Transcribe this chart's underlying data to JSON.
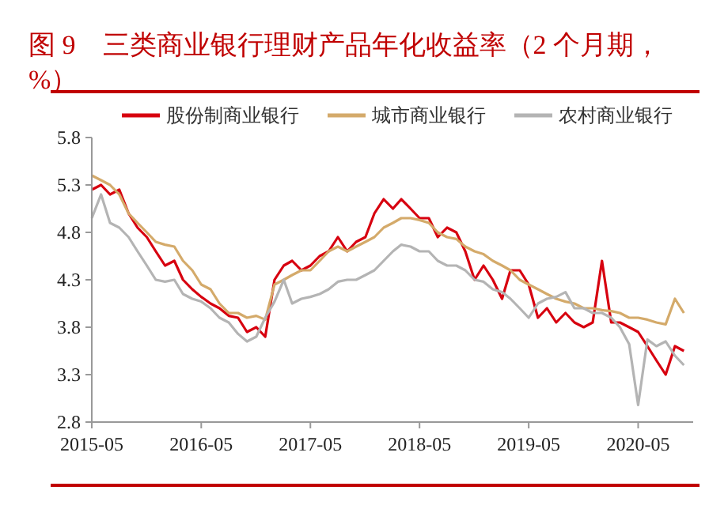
{
  "chart_data": {
    "type": "line",
    "title": "图 9　三类商业银行理财产品年化收益率（2 个月期，%）",
    "x": [
      "2015-05",
      "2015-06",
      "2015-07",
      "2015-08",
      "2015-09",
      "2015-10",
      "2015-11",
      "2015-12",
      "2016-01",
      "2016-02",
      "2016-03",
      "2016-04",
      "2016-05",
      "2016-06",
      "2016-07",
      "2016-08",
      "2016-09",
      "2016-10",
      "2016-11",
      "2016-12",
      "2017-01",
      "2017-02",
      "2017-03",
      "2017-04",
      "2017-05",
      "2017-06",
      "2017-07",
      "2017-08",
      "2017-09",
      "2017-10",
      "2017-11",
      "2017-12",
      "2018-01",
      "2018-02",
      "2018-03",
      "2018-04",
      "2018-05",
      "2018-06",
      "2018-07",
      "2018-08",
      "2018-09",
      "2018-10",
      "2018-11",
      "2018-12",
      "2019-01",
      "2019-02",
      "2019-03",
      "2019-04",
      "2019-05",
      "2019-06",
      "2019-07",
      "2019-08",
      "2019-09",
      "2019-10",
      "2019-11",
      "2019-12",
      "2020-01",
      "2020-02",
      "2020-03",
      "2020-04",
      "2020-05",
      "2020-06",
      "2020-07",
      "2020-08",
      "2020-09",
      "2020-10"
    ],
    "series": [
      {
        "name": "股份制商业银行",
        "color": "#d7000f",
        "values": [
          5.25,
          5.3,
          5.2,
          5.25,
          5.0,
          4.85,
          4.75,
          4.6,
          4.45,
          4.5,
          4.3,
          4.2,
          4.12,
          4.05,
          4.0,
          3.92,
          3.9,
          3.75,
          3.8,
          3.7,
          4.3,
          4.45,
          4.5,
          4.4,
          4.45,
          4.55,
          4.6,
          4.75,
          4.6,
          4.7,
          4.75,
          5.0,
          5.15,
          5.05,
          5.15,
          5.05,
          4.95,
          4.95,
          4.75,
          4.85,
          4.8,
          4.6,
          4.3,
          4.45,
          4.3,
          4.1,
          4.4,
          4.4,
          4.25,
          3.9,
          4.0,
          3.85,
          3.95,
          3.85,
          3.8,
          3.85,
          4.5,
          3.85,
          3.85,
          3.8,
          3.75,
          3.6,
          3.45,
          3.3,
          3.6,
          3.55
        ]
      },
      {
        "name": "城市商业银行",
        "color": "#d4aa6a",
        "values": [
          5.4,
          5.35,
          5.3,
          5.2,
          5.0,
          4.9,
          4.8,
          4.7,
          4.67,
          4.65,
          4.5,
          4.4,
          4.25,
          4.2,
          4.05,
          3.95,
          3.95,
          3.9,
          3.92,
          3.88,
          4.25,
          4.3,
          4.35,
          4.4,
          4.4,
          4.5,
          4.6,
          4.65,
          4.6,
          4.65,
          4.7,
          4.75,
          4.85,
          4.9,
          4.95,
          4.95,
          4.93,
          4.9,
          4.8,
          4.75,
          4.73,
          4.65,
          4.6,
          4.57,
          4.5,
          4.45,
          4.4,
          4.3,
          4.25,
          4.2,
          4.15,
          4.1,
          4.07,
          4.05,
          4.0,
          4.0,
          3.98,
          3.97,
          3.95,
          3.9,
          3.9,
          3.88,
          3.85,
          3.83,
          4.1,
          3.95
        ]
      },
      {
        "name": "农村商业银行",
        "color": "#b4b4b4",
        "values": [
          4.95,
          5.2,
          4.9,
          4.85,
          4.75,
          4.6,
          4.45,
          4.3,
          4.28,
          4.3,
          4.15,
          4.1,
          4.07,
          4.0,
          3.9,
          3.85,
          3.73,
          3.65,
          3.7,
          3.9,
          4.07,
          4.3,
          4.05,
          4.1,
          4.12,
          4.15,
          4.2,
          4.28,
          4.3,
          4.3,
          4.35,
          4.4,
          4.5,
          4.6,
          4.67,
          4.65,
          4.6,
          4.6,
          4.5,
          4.45,
          4.45,
          4.4,
          4.3,
          4.28,
          4.2,
          4.17,
          4.1,
          4.0,
          3.9,
          4.05,
          4.1,
          4.12,
          4.17,
          4.0,
          4.0,
          3.95,
          3.95,
          3.9,
          3.8,
          3.62,
          2.98,
          3.67,
          3.6,
          3.65,
          3.5,
          3.4
        ]
      }
    ],
    "xlim": [
      "2015-05",
      "2020-11"
    ],
    "xticks": [
      "2015-05",
      "2016-05",
      "2017-05",
      "2018-05",
      "2019-05",
      "2020-05"
    ],
    "ylim": [
      2.8,
      5.8
    ],
    "yticks": [
      2.8,
      3.3,
      3.8,
      4.3,
      4.8,
      5.3,
      5.8
    ],
    "grid": false,
    "legend": "top",
    "line_style": "solid",
    "marker": "none"
  }
}
